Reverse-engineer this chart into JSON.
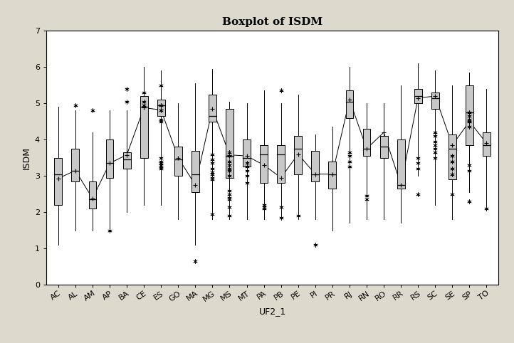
{
  "title": "Boxplot of ISDM",
  "xlabel": "UF2_1",
  "ylabel": "ISDM",
  "ylim": [
    0,
    7
  ],
  "yticks": [
    0,
    1,
    2,
    3,
    4,
    5,
    6,
    7
  ],
  "states": [
    "AC",
    "AL",
    "AM",
    "AP",
    "BA",
    "CE",
    "ES",
    "GO",
    "MA",
    "MG",
    "MS",
    "MT",
    "PA",
    "PB",
    "PE",
    "PI",
    "PR",
    "RJ",
    "RN",
    "RO",
    "RR",
    "RS",
    "SC",
    "SE",
    "SP",
    "TO"
  ],
  "bg_color": "#ddd9cc",
  "plot_bg": "#ffffff",
  "box_color": "#c8c8c8",
  "boxes": [
    {
      "q1": 2.2,
      "median": 3.05,
      "q3": 3.5,
      "mean": 2.93,
      "whislo": 1.1,
      "whishi": 4.9,
      "fliers_lo": [],
      "fliers_hi": []
    },
    {
      "q1": 2.85,
      "median": 3.15,
      "q3": 3.75,
      "mean": 3.15,
      "whislo": 1.5,
      "whishi": 4.8,
      "fliers_lo": [],
      "fliers_hi": [
        4.95
      ]
    },
    {
      "q1": 2.1,
      "median": 2.35,
      "q3": 2.85,
      "mean": 2.38,
      "whislo": 1.5,
      "whishi": 4.2,
      "fliers_lo": [],
      "fliers_hi": [
        4.8
      ]
    },
    {
      "q1": 2.95,
      "median": 3.35,
      "q3": 4.0,
      "mean": 3.35,
      "whislo": 1.5,
      "whishi": 4.8,
      "fliers_lo": [
        1.5
      ],
      "fliers_hi": []
    },
    {
      "q1": 3.2,
      "median": 3.45,
      "q3": 3.65,
      "mean": 3.58,
      "whislo": 2.0,
      "whishi": 4.8,
      "fliers_lo": [],
      "fliers_hi": [
        5.05,
        5.4
      ]
    },
    {
      "q1": 3.5,
      "median": 4.9,
      "q3": 5.2,
      "mean": 4.88,
      "whislo": 2.2,
      "whishi": 6.0,
      "fliers_lo": [],
      "fliers_hi": [
        4.95,
        5.05,
        5.3
      ]
    },
    {
      "q1": 4.65,
      "median": 4.95,
      "q3": 5.1,
      "mean": 4.82,
      "whislo": 2.2,
      "whishi": 5.9,
      "fliers_lo": [
        3.2,
        3.25,
        3.3,
        3.35,
        3.4,
        3.5
      ],
      "fliers_hi": [
        4.5,
        4.55,
        4.8,
        4.95,
        5.5
      ]
    },
    {
      "q1": 3.0,
      "median": 3.45,
      "q3": 3.8,
      "mean": 3.5,
      "whislo": 1.8,
      "whishi": 5.0,
      "fliers_lo": [],
      "fliers_hi": []
    },
    {
      "q1": 2.55,
      "median": 3.05,
      "q3": 3.7,
      "mean": 2.75,
      "whislo": 1.1,
      "whishi": 5.55,
      "fliers_lo": [
        0.65
      ],
      "fliers_hi": []
    },
    {
      "q1": 4.5,
      "median": 4.65,
      "q3": 5.25,
      "mean": 4.85,
      "whislo": 1.8,
      "whishi": 5.95,
      "fliers_lo": [
        1.95,
        2.9,
        2.95,
        3.05,
        3.1,
        3.2,
        3.35,
        3.45,
        3.6
      ],
      "fliers_hi": []
    },
    {
      "q1": 2.95,
      "median": 3.55,
      "q3": 4.85,
      "mean": 3.58,
      "whislo": 1.8,
      "whishi": 5.05,
      "fliers_lo": [
        1.9,
        2.15,
        2.35,
        2.4,
        2.5,
        2.6,
        3.0,
        3.15,
        3.2,
        3.3,
        3.4,
        3.55,
        3.65
      ],
      "fliers_hi": []
    },
    {
      "q1": 3.25,
      "median": 3.5,
      "q3": 4.0,
      "mean": 3.55,
      "whislo": 1.8,
      "whishi": 5.0,
      "fliers_lo": [
        2.8,
        3.0,
        3.15,
        3.25,
        3.35
      ],
      "fliers_hi": []
    },
    {
      "q1": 2.8,
      "median": 3.6,
      "q3": 3.85,
      "mean": 3.3,
      "whislo": 1.8,
      "whishi": 5.35,
      "fliers_lo": [
        2.1,
        2.15,
        2.2
      ],
      "fliers_hi": []
    },
    {
      "q1": 2.8,
      "median": 3.6,
      "q3": 3.85,
      "mean": 2.95,
      "whislo": 1.8,
      "whishi": 5.0,
      "fliers_lo": [
        1.85,
        2.15
      ],
      "fliers_hi": [
        5.35
      ]
    },
    {
      "q1": 3.05,
      "median": 3.75,
      "q3": 4.1,
      "mean": 3.6,
      "whislo": 1.8,
      "whishi": 5.25,
      "fliers_lo": [
        1.9
      ],
      "fliers_hi": []
    },
    {
      "q1": 2.85,
      "median": 3.05,
      "q3": 3.7,
      "mean": 3.05,
      "whislo": 1.8,
      "whishi": 4.15,
      "fliers_lo": [
        1.1
      ],
      "fliers_hi": []
    },
    {
      "q1": 2.65,
      "median": 3.05,
      "q3": 3.4,
      "mean": 3.05,
      "whislo": 1.5,
      "whishi": 4.35,
      "fliers_lo": [],
      "fliers_hi": []
    },
    {
      "q1": 4.6,
      "median": 5.05,
      "q3": 5.35,
      "mean": 5.1,
      "whislo": 1.7,
      "whishi": 6.0,
      "fliers_lo": [
        3.25,
        3.4,
        3.55,
        3.65
      ],
      "fliers_hi": []
    },
    {
      "q1": 3.55,
      "median": 3.75,
      "q3": 4.3,
      "mean": 3.75,
      "whislo": 1.8,
      "whishi": 5.0,
      "fliers_lo": [
        2.35,
        2.45
      ],
      "fliers_hi": []
    },
    {
      "q1": 3.5,
      "median": 3.8,
      "q3": 4.1,
      "mean": 4.2,
      "whislo": 1.8,
      "whishi": 5.0,
      "fliers_lo": [],
      "fliers_hi": []
    },
    {
      "q1": 2.65,
      "median": 2.75,
      "q3": 4.0,
      "mean": 2.75,
      "whislo": 1.7,
      "whishi": 5.5,
      "fliers_lo": [],
      "fliers_hi": []
    },
    {
      "q1": 5.0,
      "median": 5.2,
      "q3": 5.4,
      "mean": 5.15,
      "whislo": 3.0,
      "whishi": 6.1,
      "fliers_lo": [
        2.5,
        3.2,
        3.35,
        3.5
      ],
      "fliers_hi": []
    },
    {
      "q1": 4.85,
      "median": 5.15,
      "q3": 5.3,
      "mean": 5.2,
      "whislo": 2.2,
      "whishi": 5.9,
      "fliers_lo": [
        3.5,
        3.65,
        3.75,
        3.85,
        3.95,
        4.1,
        4.2
      ],
      "fliers_hi": []
    },
    {
      "q1": 2.9,
      "median": 3.75,
      "q3": 4.15,
      "mean": 3.85,
      "whislo": 1.8,
      "whishi": 5.5,
      "fliers_lo": [
        2.5,
        3.05,
        3.2,
        3.4,
        3.55
      ],
      "fliers_hi": []
    },
    {
      "q1": 3.85,
      "median": 4.75,
      "q3": 5.5,
      "mean": 4.5,
      "whislo": 2.55,
      "whishi": 5.85,
      "fliers_lo": [
        2.3,
        3.15,
        3.3
      ],
      "fliers_hi": [
        4.35,
        4.5,
        4.55,
        4.65,
        4.75
      ]
    },
    {
      "q1": 3.55,
      "median": 3.85,
      "q3": 4.2,
      "mean": 3.9,
      "whislo": 2.05,
      "whishi": 5.4,
      "fliers_lo": [
        2.1
      ],
      "fliers_hi": []
    }
  ]
}
